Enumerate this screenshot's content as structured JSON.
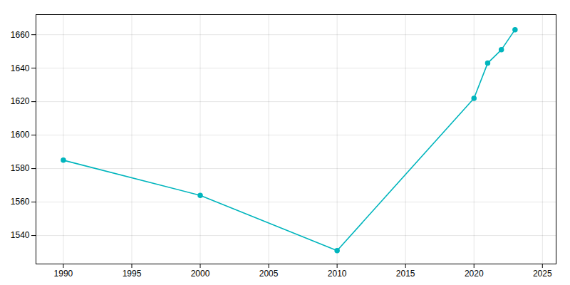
{
  "chart_data": {
    "type": "line",
    "x": [
      1990,
      2000,
      2010,
      2020,
      2021,
      2022,
      2023
    ],
    "values": [
      1585,
      1564,
      1531,
      1622,
      1643,
      1651,
      1663
    ],
    "color": "#00B5BD",
    "marker": "circle",
    "xlim": [
      1988,
      2026
    ],
    "ylim": [
      1523,
      1672
    ],
    "xticks": [
      1990,
      1995,
      2000,
      2005,
      2010,
      2015,
      2020,
      2025
    ],
    "yticks": [
      1540,
      1560,
      1580,
      1600,
      1620,
      1640,
      1660
    ],
    "grid": true
  }
}
